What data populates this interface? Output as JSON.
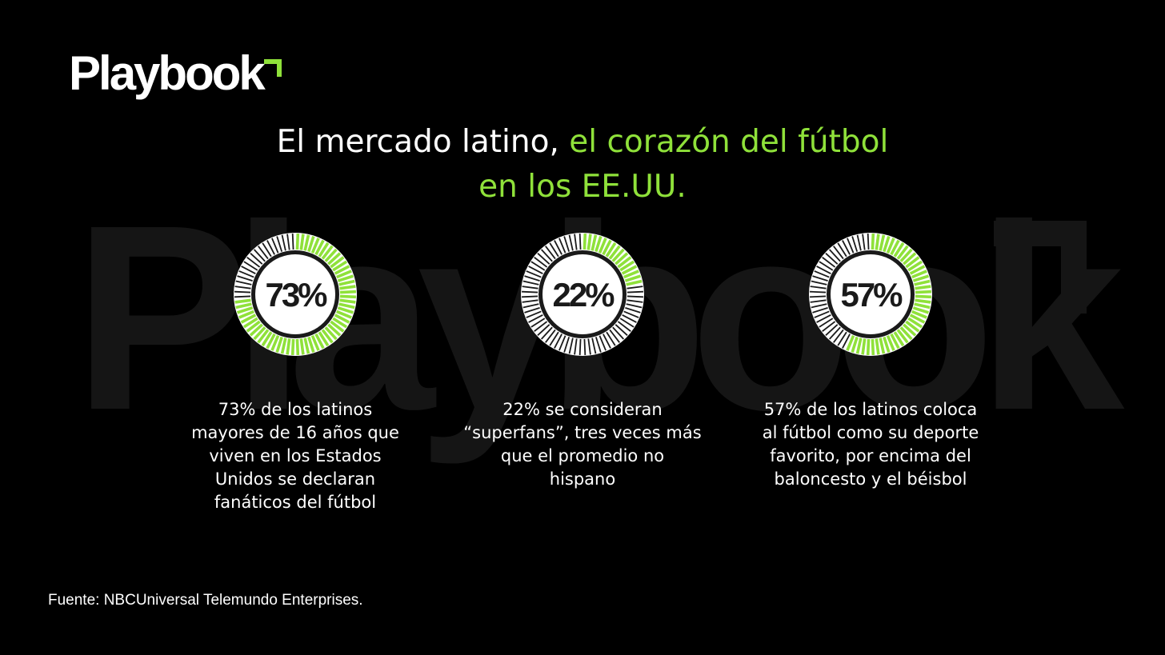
{
  "brand": {
    "logo_text": "Playbook",
    "watermark_text": "Playbook",
    "accent_color": "#8fe13a",
    "background": "#000000"
  },
  "headline": {
    "line1_white": "El mercado latino, ",
    "line1_green": "el corazón del fútbol",
    "line2_green": "en los EE.UU."
  },
  "stats": [
    {
      "percent": 73,
      "label": "73%",
      "lines": [
        "73% de los latinos",
        "mayores de 16 años que",
        "viven en los Estados",
        "Unidos se declaran",
        "fanáticos del fútbol"
      ]
    },
    {
      "percent": 22,
      "label": "22%",
      "lines": [
        "22% se consideran",
        "“superfans”, tres veces más",
        "que el promedio no",
        "hispano"
      ]
    },
    {
      "percent": 57,
      "label": "57%",
      "lines": [
        "57% de los latinos coloca",
        "al fútbol como su deporte",
        "favorito, por encima del",
        "baloncesto y el béisbol"
      ]
    }
  ],
  "source": "Fuente: NBCUniversal Telemundo Enterprises."
}
